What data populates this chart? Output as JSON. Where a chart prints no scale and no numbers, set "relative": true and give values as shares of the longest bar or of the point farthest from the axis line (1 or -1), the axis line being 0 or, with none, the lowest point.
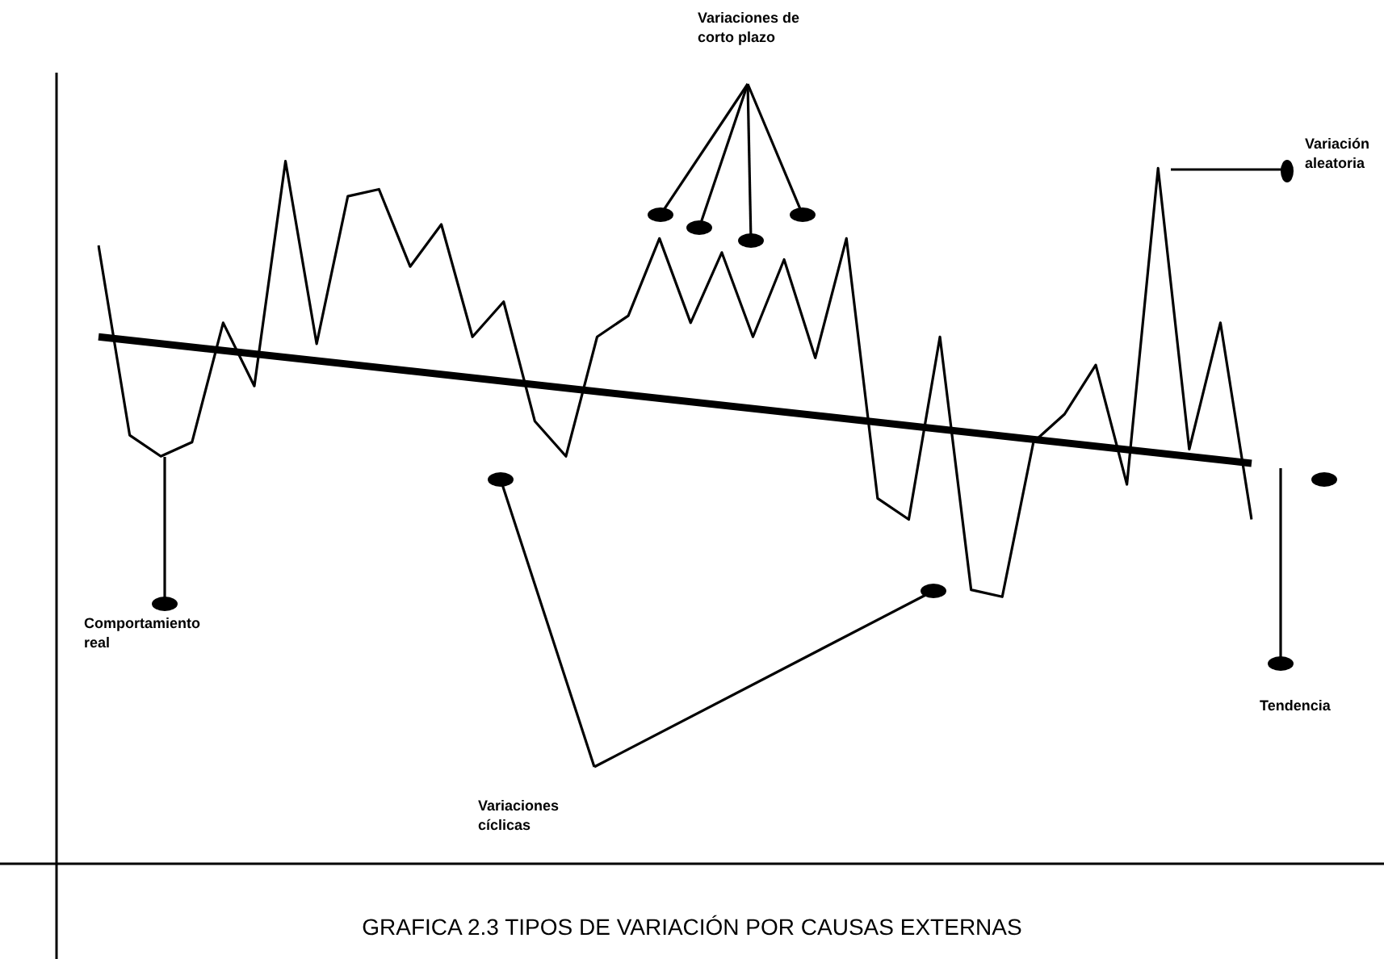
{
  "chart_data": {
    "type": "line",
    "relative": true,
    "title": "GRAFICA 2.3 TIPOS DE VARIACIÓN POR CAUSAS EXTERNAS",
    "categories": [
      null,
      null,
      null,
      null,
      null,
      null,
      null,
      null,
      null,
      null,
      null,
      null,
      null,
      null,
      null,
      null,
      null,
      null,
      null,
      null,
      null,
      null,
      null,
      null,
      null,
      null,
      null,
      null,
      null,
      null,
      null,
      null,
      null,
      null,
      null,
      null,
      null,
      null
    ],
    "series": [
      {
        "color": "#000000",
        "values": [
          0.88,
          0.61,
          0.58,
          0.6,
          0.77,
          0.68,
          1.0,
          0.74,
          0.95,
          0.96,
          0.85,
          0.91,
          0.75,
          0.8,
          0.63,
          0.58,
          0.75,
          0.78,
          0.89,
          0.77,
          0.87,
          0.75,
          0.86,
          0.72,
          0.89,
          0.52,
          0.49,
          0.75,
          0.39,
          0.38,
          0.6,
          0.64,
          0.71,
          0.54,
          0.99,
          0.59,
          0.77,
          0.49
        ]
      },
      {
        "color": "#000000",
        "values": [
          0.75,
          null,
          null,
          null,
          null,
          null,
          null,
          null,
          null,
          null,
          null,
          null,
          null,
          null,
          null,
          null,
          null,
          null,
          null,
          null,
          null,
          null,
          null,
          null,
          null,
          null,
          null,
          null,
          null,
          null,
          null,
          null,
          null,
          null,
          null,
          null,
          null,
          0.57
        ]
      }
    ],
    "annotations": [
      "Variaciones de corto plazo",
      "Variación aleatoria",
      "Comportamiento real",
      "Variaciones cíclicas",
      "Tendencia"
    ],
    "legend": false,
    "marker": "none",
    "line_style": "solid"
  }
}
